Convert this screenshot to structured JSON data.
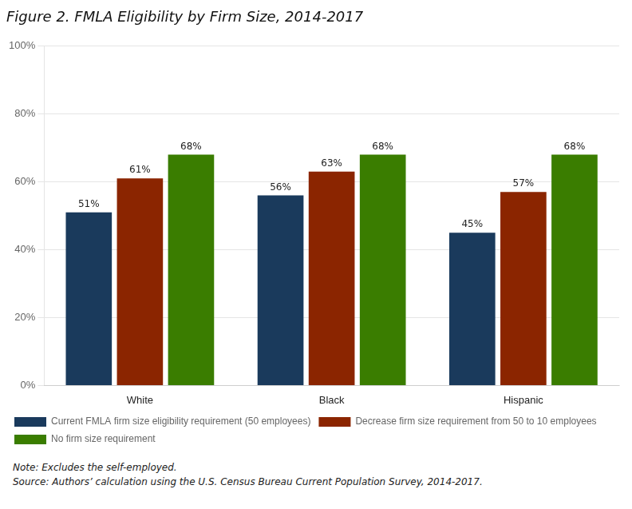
{
  "chart_data": {
    "type": "bar",
    "title": "Figure 2. FMLA Eligibility by Firm Size, 2014-2017",
    "categories": [
      "White",
      "Black",
      "Hispanic"
    ],
    "series": [
      {
        "name": "Current FMLA firm size eligibility requirement (50 employees)",
        "color": "#1a3a5c",
        "values": [
          51,
          56,
          45
        ],
        "value_labels": [
          "51%",
          "56%",
          "45%"
        ]
      },
      {
        "name": "Decrease firm size requirement from 50 to 10 employees",
        "color": "#8b2500",
        "values": [
          61,
          63,
          57
        ],
        "value_labels": [
          "61%",
          "63%",
          "57%"
        ]
      },
      {
        "name": "No firm size requirement",
        "color": "#3a7d00",
        "values": [
          68,
          68,
          68
        ],
        "value_labels": [
          "68%",
          "68%",
          "68%"
        ]
      }
    ],
    "ylim": [
      0,
      100
    ],
    "yticks": [
      {
        "value": 0,
        "label": "0%"
      },
      {
        "value": 20,
        "label": "20%"
      },
      {
        "value": 40,
        "label": "40%"
      },
      {
        "value": 60,
        "label": "60%"
      },
      {
        "value": 80,
        "label": "80%"
      },
      {
        "value": 100,
        "label": "100%"
      }
    ],
    "grid": true,
    "legend": "bottom",
    "data_labels": true,
    "annotations": [
      "Note: Excludes the self-employed.",
      "Source: Authors’ calculation using the U.S. Census Bureau Current Population Survey, 2014-2017."
    ]
  }
}
